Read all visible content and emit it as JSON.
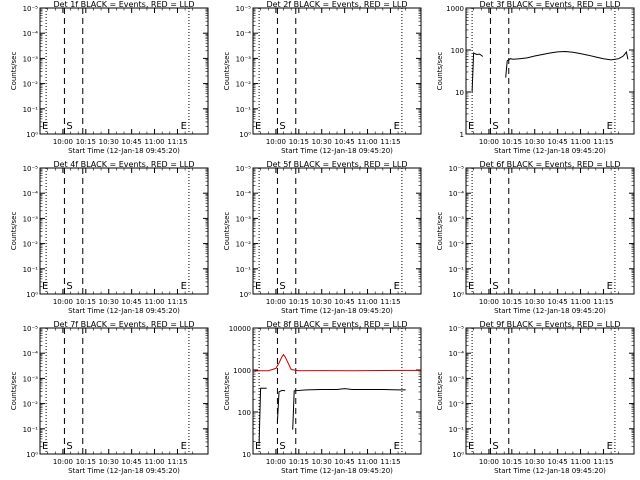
{
  "chart_data": [
    {
      "type": "line",
      "title": "Det 1f BLACK = Events, RED = LLD",
      "xlabel": "Start Time (12-Jan-18 09:45:20)",
      "ylabel": "Counts/sec",
      "xticks": [
        "10:00",
        "10:15",
        "10:30",
        "10:45",
        "11:00",
        "11:15"
      ],
      "yticks": [
        "10⁰",
        "10⁻¹",
        "10⁻²",
        "10⁻³",
        "10⁻⁴",
        "10⁻⁵"
      ],
      "ylim_log10": [
        -5,
        0
      ],
      "markers": [
        "E",
        "S",
        "E"
      ],
      "series": []
    },
    {
      "type": "line",
      "title": "Det 2f BLACK = Events, RED = LLD",
      "xlabel": "Start Time (12-Jan-18 09:45:20)",
      "ylabel": "Counts/sec",
      "xticks": [
        "10:00",
        "10:15",
        "10:30",
        "10:45",
        "11:00",
        "11:15"
      ],
      "yticks": [
        "10⁰",
        "10⁻¹",
        "10⁻²",
        "10⁻³",
        "10⁻⁴",
        "10⁻⁵"
      ],
      "ylim_log10": [
        -5,
        0
      ],
      "markers": [
        "E",
        "S",
        "E"
      ],
      "series": []
    },
    {
      "type": "line",
      "title": "Det 3f BLACK = Events, RED = LLD",
      "xlabel": "Start Time (12-Jan-18 09:45:20)",
      "ylabel": "Counts/sec",
      "xticks": [
        "10:00",
        "10:15",
        "10:30",
        "10:45",
        "11:00",
        "11:15"
      ],
      "yticks": [
        "1",
        "10",
        "100",
        "1000"
      ],
      "ylim_log10": [
        0,
        3
      ],
      "markers": [
        "E",
        "S",
        "E"
      ],
      "series": [
        {
          "color": "#000000",
          "segments": [
            [
              [
                -11,
                10
              ],
              [
                -10,
                85
              ],
              [
                -8,
                78
              ],
              [
                -6,
                80
              ],
              [
                -4,
                70
              ]
            ],
            [
              [
                11,
                22
              ],
              [
                12,
                55
              ],
              [
                14,
                62
              ],
              [
                16,
                60
              ],
              [
                20,
                62
              ],
              [
                25,
                65
              ],
              [
                30,
                72
              ],
              [
                35,
                78
              ],
              [
                40,
                85
              ],
              [
                45,
                90
              ],
              [
                50,
                92
              ],
              [
                55,
                88
              ],
              [
                60,
                82
              ],
              [
                65,
                75
              ],
              [
                70,
                68
              ],
              [
                75,
                62
              ],
              [
                80,
                58
              ],
              [
                85,
                62
              ],
              [
                88,
                72
              ],
              [
                90,
                90
              ],
              [
                91,
                60
              ]
            ]
          ]
        }
      ]
    },
    {
      "type": "line",
      "title": "Det 4f BLACK = Events, RED = LLD",
      "xlabel": "Start Time (12-Jan-18 09:45:20)",
      "ylabel": "Counts/sec",
      "xticks": [
        "10:00",
        "10:15",
        "10:30",
        "10:45",
        "11:00",
        "11:15"
      ],
      "yticks": [
        "10⁰",
        "10⁻¹",
        "10⁻²",
        "10⁻³",
        "10⁻⁴",
        "10⁻⁵"
      ],
      "ylim_log10": [
        -5,
        0
      ],
      "markers": [
        "E",
        "S",
        "E"
      ],
      "series": []
    },
    {
      "type": "line",
      "title": "Det 5f BLACK = Events, RED = LLD",
      "xlabel": "Start Time (12-Jan-18 09:45:20)",
      "ylabel": "Counts/sec",
      "xticks": [
        "10:00",
        "10:15",
        "10:30",
        "10:45",
        "11:00",
        "11:15"
      ],
      "yticks": [
        "10⁰",
        "10⁻¹",
        "10⁻²",
        "10⁻³",
        "10⁻⁴",
        "10⁻⁵"
      ],
      "ylim_log10": [
        -5,
        0
      ],
      "markers": [
        "E",
        "S",
        "E"
      ],
      "series": []
    },
    {
      "type": "line",
      "title": "Det 6f BLACK = Events, RED = LLD",
      "xlabel": "Start Time (12-Jan-18 09:45:20)",
      "ylabel": "Counts/sec",
      "xticks": [
        "10:00",
        "10:15",
        "10:30",
        "10:45",
        "11:00",
        "11:15"
      ],
      "yticks": [
        "10⁰",
        "10⁻¹",
        "10⁻²",
        "10⁻³",
        "10⁻⁴",
        "10⁻⁵"
      ],
      "ylim_log10": [
        -5,
        0
      ],
      "markers": [
        "E",
        "S",
        "E"
      ],
      "series": []
    },
    {
      "type": "line",
      "title": "Det 7f BLACK = Events, RED = LLD",
      "xlabel": "Start Time (12-Jan-18 09:45:20)",
      "ylabel": "Counts/sec",
      "xticks": [
        "10:00",
        "10:15",
        "10:30",
        "10:45",
        "11:00",
        "11:15"
      ],
      "yticks": [
        "10⁰",
        "10⁻¹",
        "10⁻²",
        "10⁻³",
        "10⁻⁴",
        "10⁻⁵"
      ],
      "ylim_log10": [
        -5,
        0
      ],
      "markers": [
        "E",
        "S",
        "E"
      ],
      "series": []
    },
    {
      "type": "line",
      "title": "Det 8f BLACK = Events, RED = LLD",
      "xlabel": "Start Time (12-Jan-18 09:45:20)",
      "ylabel": "Counts/sec",
      "xticks": [
        "10:00",
        "10:15",
        "10:30",
        "10:45",
        "11:00",
        "11:15"
      ],
      "yticks": [
        "10",
        "100",
        "1000",
        "10000"
      ],
      "ylim_log10": [
        0.7,
        4.3
      ],
      "markers": [
        "E",
        "S",
        "E"
      ],
      "series": [
        {
          "color": "#000000",
          "segments": [
            [
              [
                -11,
                10
              ],
              [
                -10,
                380
              ],
              [
                -8,
                380
              ],
              [
                -6,
                380
              ]
            ],
            [
              [
                1,
                40
              ],
              [
                2,
                300
              ],
              [
                4,
                330
              ],
              [
                6,
                320
              ]
            ],
            [
              [
                11,
                25
              ],
              [
                12,
                320
              ],
              [
                20,
                340
              ],
              [
                30,
                350
              ],
              [
                40,
                350
              ],
              [
                45,
                370
              ],
              [
                50,
                350
              ],
              [
                60,
                350
              ],
              [
                70,
                350
              ],
              [
                80,
                340
              ],
              [
                85,
                340
              ]
            ]
          ]
        },
        {
          "color": "#d00000",
          "segments": [
            [
              [
                -14,
                1180
              ],
              [
                -10,
                1200
              ],
              [
                -5,
                1200
              ],
              [
                0,
                1400
              ],
              [
                2,
                2000
              ],
              [
                4,
                3000
              ],
              [
                5,
                3500
              ],
              [
                6,
                3000
              ],
              [
                8,
                2000
              ],
              [
                10,
                1300
              ],
              [
                15,
                1200
              ],
              [
                30,
                1210
              ],
              [
                50,
                1200
              ],
              [
                70,
                1220
              ],
              [
                85,
                1230
              ],
              [
                95,
                1220
              ]
            ]
          ]
        }
      ]
    },
    {
      "type": "line",
      "title": "Det 9f BLACK = Events, RED = LLD",
      "xlabel": "Start Time (12-Jan-18 09:45:20)",
      "ylabel": "Counts/sec",
      "xticks": [
        "10:00",
        "10:15",
        "10:30",
        "10:45",
        "11:00",
        "11:15"
      ],
      "yticks": [
        "10⁰",
        "10⁻¹",
        "10⁻²",
        "10⁻³",
        "10⁻⁴",
        "10⁻⁵"
      ],
      "ylim_log10": [
        -5,
        0
      ],
      "markers": [
        "E",
        "S",
        "E"
      ],
      "series": []
    }
  ]
}
